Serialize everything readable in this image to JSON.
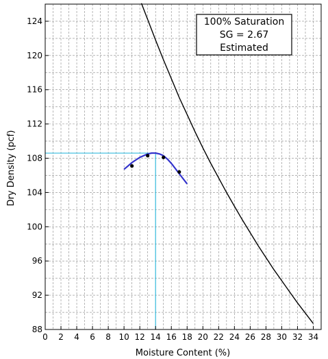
{
  "chart_data": {
    "type": "line",
    "xlabel": "Moisture Content (%)",
    "ylabel": "Dry Density (pcf)",
    "xlim": [
      0,
      35
    ],
    "ylim": [
      88,
      126
    ],
    "x_ticks": [
      0,
      2,
      4,
      6,
      8,
      10,
      12,
      14,
      16,
      18,
      20,
      22,
      24,
      26,
      28,
      30,
      32,
      34
    ],
    "y_ticks": [
      88,
      92,
      96,
      100,
      104,
      108,
      112,
      116,
      120,
      124
    ],
    "grid": true,
    "grid_style": "dashed",
    "annotation": {
      "lines": [
        "100% Saturation",
        "SG = 2.67",
        "Estimated"
      ],
      "placement": "top-center"
    },
    "series": [
      {
        "kind": "zero-air-voids",
        "color": "#000000",
        "x": [
          12.2,
          13,
          14,
          15,
          16,
          17,
          18,
          19,
          20,
          21,
          22,
          23,
          24,
          25,
          26,
          27,
          28,
          29,
          30,
          31,
          32,
          33,
          34
        ],
        "y": [
          126.1,
          124.2,
          121.8,
          119.5,
          117.3,
          115.1,
          113.1,
          111.1,
          109.2,
          107.4,
          105.7,
          104.0,
          102.4,
          100.8,
          99.3,
          97.8,
          96.4,
          95.0,
          93.7,
          92.4,
          91.1,
          89.9,
          88.7
        ]
      },
      {
        "kind": "compaction-curve",
        "color": "#3333cc",
        "x": [
          10.0,
          10.5,
          11.0,
          11.5,
          12.0,
          12.5,
          13.0,
          13.5,
          14.0,
          14.5,
          15.0,
          15.5,
          16.0,
          16.5,
          17.0,
          17.5,
          18.0
        ],
        "y": [
          106.7,
          107.1,
          107.5,
          107.8,
          108.1,
          108.3,
          108.5,
          108.6,
          108.6,
          108.5,
          108.3,
          107.9,
          107.4,
          106.8,
          106.2,
          105.6,
          105.0
        ]
      },
      {
        "kind": "test-points",
        "color": "#000000",
        "x": [
          11.0,
          13.0,
          15.0,
          17.0
        ],
        "y": [
          107.1,
          108.3,
          108.1,
          106.4
        ]
      }
    ],
    "reference_lines": {
      "color": "#33bbdd",
      "optimum_moisture": 14.0,
      "max_dry_density": 108.6
    }
  }
}
